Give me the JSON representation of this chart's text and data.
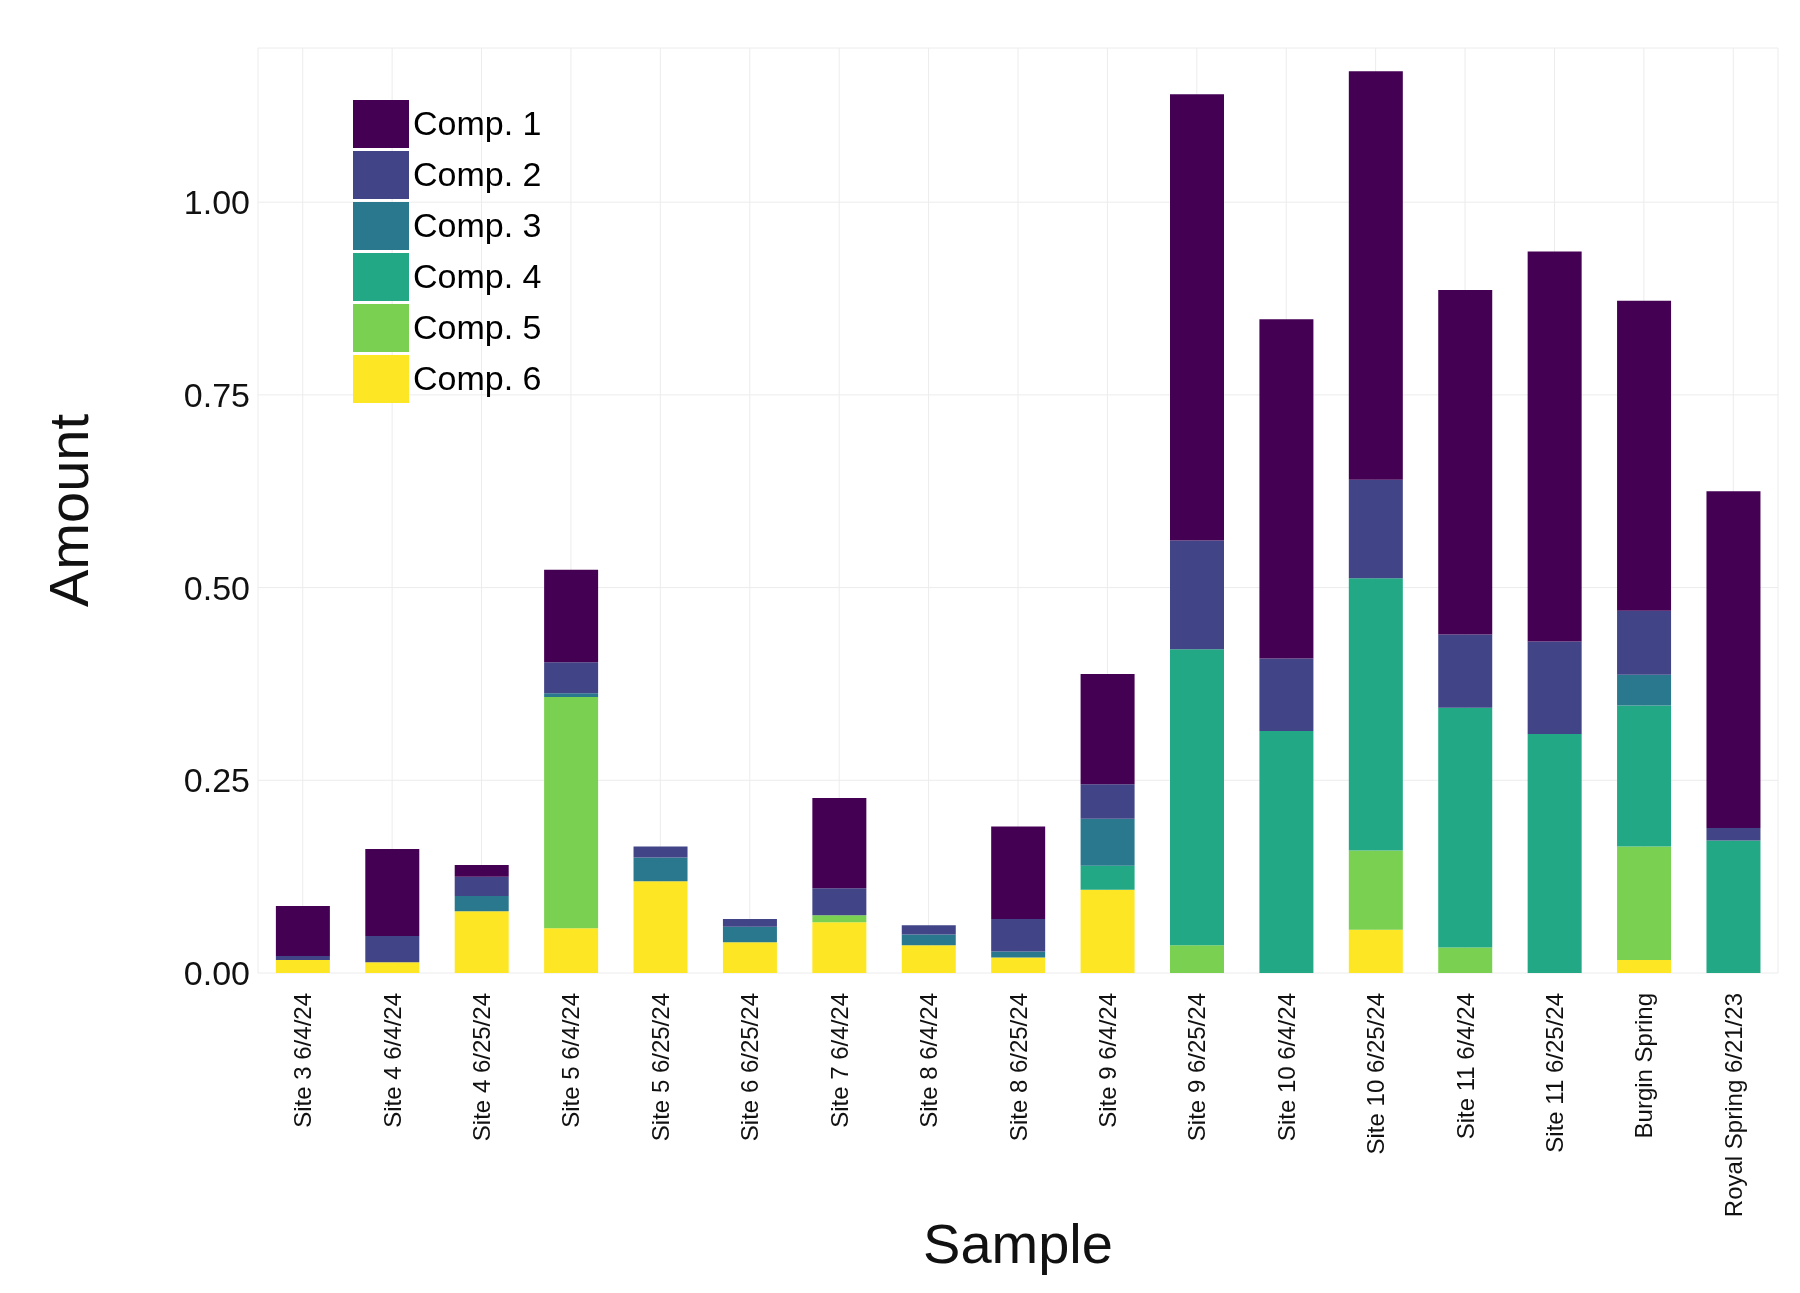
{
  "chart_data": {
    "type": "bar",
    "stacked": true,
    "xlabel": "Sample",
    "ylabel": "Amount",
    "categories": [
      "Site 3 6/4/24",
      "Site 4 6/4/24",
      "Site 4 6/25/24",
      "Site 5 6/4/24",
      "Site 5 6/25/24",
      "Site 6 6/25/24",
      "Site 7 6/4/24",
      "Site 8 6/4/24",
      "Site 8 6/25/24",
      "Site 9 6/4/24",
      "Site 9  6/25/24",
      "Site 10 6/4/24",
      "Site 10 6/25/24",
      "Site 11 6/4/24",
      "Site 11 6/25/24",
      "Burgin Spring",
      "Royal Spring 6/21/23"
    ],
    "series": [
      {
        "name": "Comp. 6",
        "color": "#fde725",
        "values": [
          0.017,
          0.014,
          0.08,
          0.058,
          0.119,
          0.04,
          0.066,
          0.036,
          0.02,
          0.108,
          0,
          0,
          0.056,
          0,
          0,
          0.017,
          0
        ]
      },
      {
        "name": "Comp. 5",
        "color": "#7ad151",
        "values": [
          0,
          0,
          0,
          0.3,
          0,
          0,
          0.009,
          0,
          0,
          0,
          0.036,
          0,
          0.103,
          0.033,
          0,
          0.147,
          0
        ]
      },
      {
        "name": "Comp. 4",
        "color": "#22a884",
        "values": [
          0,
          0,
          0,
          0,
          0,
          0,
          0,
          0,
          0,
          0.031,
          0.384,
          0.314,
          0.353,
          0.311,
          0.31,
          0.183,
          0.172
        ]
      },
      {
        "name": "Comp. 3",
        "color": "#2a788e",
        "values": [
          0,
          0,
          0.02,
          0.005,
          0.031,
          0.02,
          0,
          0.014,
          0.008,
          0.061,
          0,
          0,
          0,
          0,
          0,
          0.04,
          0
        ]
      },
      {
        "name": "Comp. 2",
        "color": "#414487",
        "values": [
          0.005,
          0.034,
          0.025,
          0.04,
          0.014,
          0.01,
          0.035,
          0.012,
          0.042,
          0.045,
          0.141,
          0.094,
          0.128,
          0.095,
          0.12,
          0.083,
          0.016
        ]
      },
      {
        "name": "Comp. 1",
        "color": "#440154",
        "values": [
          0.065,
          0.113,
          0.015,
          0.12,
          0,
          0,
          0.117,
          0,
          0.12,
          0.143,
          0.579,
          0.44,
          0.53,
          0.447,
          0.506,
          0.402,
          0.437
        ]
      }
    ],
    "ylim": [
      0,
      1.2
    ],
    "yticks": [
      {
        "value": 0,
        "label": "0.00"
      },
      {
        "value": 0.25,
        "label": "0.25"
      },
      {
        "value": 0.5,
        "label": "0.50"
      },
      {
        "value": 0.75,
        "label": "0.75"
      },
      {
        "value": 1,
        "label": "1.00"
      }
    ],
    "grid": true,
    "legend": "top left"
  }
}
